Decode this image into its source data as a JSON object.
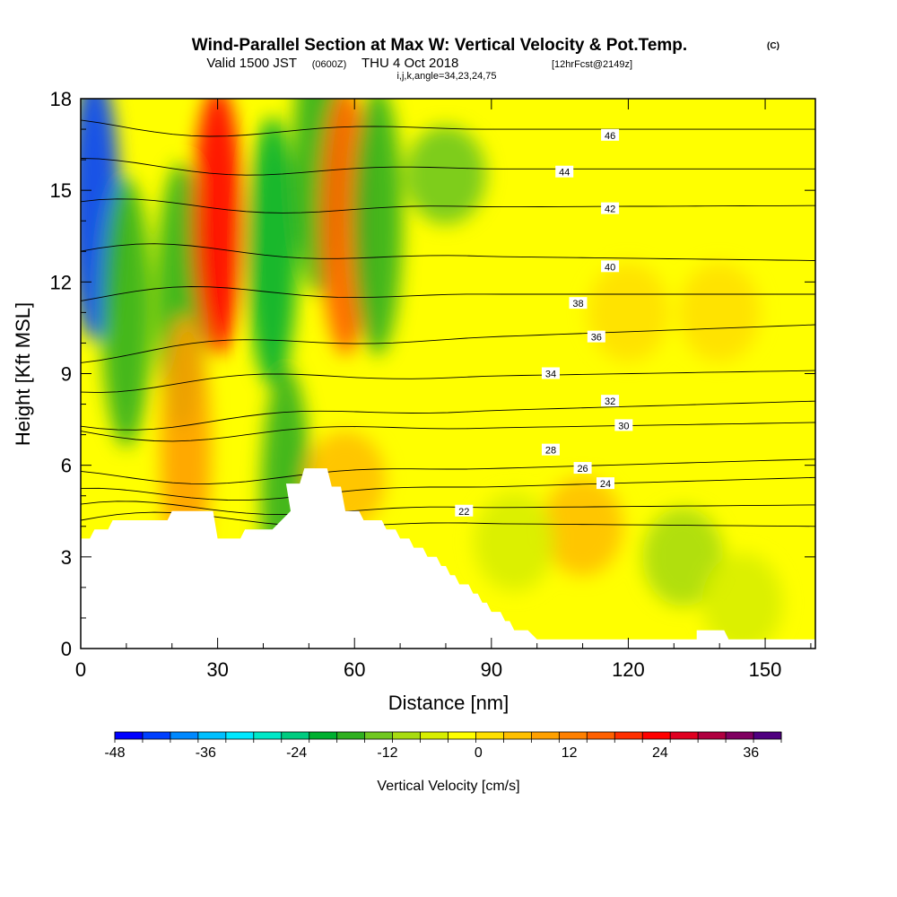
{
  "header": {
    "title": "Wind-Parallel Section at Max W: Vertical Velocity & Pot.Temp.",
    "copyright": "(C)",
    "valid_prefix": "Valid 1500 JST",
    "valid_utc": "(0600Z)",
    "valid_date": "THU 4 Oct 2018",
    "forecast": "[12hrFcst@2149z]",
    "indices": "i,j,k,angle=34,23,24,75"
  },
  "chart_data": {
    "type": "heatmap",
    "title": "Wind-Parallel Section at Max W: Vertical Velocity & Pot.Temp.",
    "xlabel": "Distance [nm]",
    "ylabel": "Height [Kft MSL]",
    "xlim": [
      0,
      161
    ],
    "ylim": [
      0,
      18
    ],
    "x_ticks": [
      "0",
      "30",
      "60",
      "90",
      "120",
      "150"
    ],
    "y_ticks": [
      "0",
      "3",
      "6",
      "9",
      "12",
      "15",
      "18"
    ],
    "x_tick_values": [
      0,
      30,
      60,
      90,
      120,
      150
    ],
    "y_tick_values": [
      0,
      3,
      6,
      9,
      12,
      15,
      18
    ],
    "colorbar": {
      "label": "Vertical Velocity [cm/s]",
      "min": -48,
      "max": 40,
      "step": 4,
      "tick_labels": [
        "-48",
        "-36",
        "-24",
        "-12",
        "0",
        "12",
        "24",
        "36"
      ],
      "tick_values": [
        -48,
        -36,
        -24,
        -12,
        0,
        12,
        24,
        36
      ],
      "colors": [
        "#0000ff",
        "#0040ff",
        "#0088ff",
        "#00c0ff",
        "#00e8ff",
        "#00e8c8",
        "#00cc80",
        "#00b030",
        "#30b020",
        "#70c820",
        "#a8dc10",
        "#d8ee00",
        "#ffff00",
        "#ffe000",
        "#ffc000",
        "#ffa000",
        "#ff8000",
        "#ff6000",
        "#ff3000",
        "#ff0000",
        "#e00020",
        "#b00040",
        "#800060",
        "#500080"
      ]
    },
    "velocity_features": [
      {
        "x": 3,
        "y": 14.5,
        "value": -44
      },
      {
        "x": 10,
        "y": 11,
        "value": -14
      },
      {
        "x": 22,
        "y": 11.5,
        "value": -16
      },
      {
        "x": 30,
        "y": 14,
        "value": 28
      },
      {
        "x": 42,
        "y": 13,
        "value": -20
      },
      {
        "x": 52,
        "y": 16,
        "value": -14
      },
      {
        "x": 58,
        "y": 14,
        "value": 20
      },
      {
        "x": 65,
        "y": 14,
        "value": -16
      },
      {
        "x": 80,
        "y": 15.5,
        "value": -10
      },
      {
        "x": 23,
        "y": 6.5,
        "value": 14
      },
      {
        "x": 45,
        "y": 4.8,
        "value": -14
      },
      {
        "x": 58,
        "y": 5.5,
        "value": 10
      },
      {
        "x": 110,
        "y": 4,
        "value": 8
      },
      {
        "x": 95,
        "y": 3.5,
        "value": -4
      },
      {
        "x": 132,
        "y": 3,
        "value": -6
      },
      {
        "x": 145,
        "y": 1.5,
        "value": -4
      },
      {
        "x": 140,
        "y": 11,
        "value": 6
      },
      {
        "x": 120,
        "y": 11,
        "value": 5
      }
    ],
    "theta_contours": [
      {
        "value": 22,
        "label": "22",
        "y_left": 4.2,
        "y_right": 4.0,
        "label_x": 84,
        "label_y": 4.5
      },
      {
        "value": 24,
        "label": "24",
        "y_left": 4.5,
        "y_right": 4.7,
        "label_x": 115,
        "label_y": 5.4
      },
      {
        "value": 26,
        "label": "26",
        "y_left": 4.9,
        "y_right": 5.6,
        "label_x": 110,
        "label_y": 5.9
      },
      {
        "value": 28,
        "label": "28",
        "y_left": 5.5,
        "y_right": 6.2,
        "label_x": 103,
        "label_y": 6.5
      },
      {
        "value": 30,
        "label": "30",
        "y_left": 7.0,
        "y_right": 7.4,
        "label_x": 119,
        "label_y": 7.3
      },
      {
        "value": 32,
        "label": "32",
        "y_left": 7.4,
        "y_right": 8.1,
        "label_x": 116,
        "label_y": 8.1
      },
      {
        "value": 34,
        "label": "34",
        "y_left": 8.7,
        "y_right": 9.1,
        "label_x": 103,
        "label_y": 9.0
      },
      {
        "value": 36,
        "label": "36",
        "y_left": 9.7,
        "y_right": 10.6,
        "label_x": 113,
        "label_y": 10.2
      },
      {
        "value": 38,
        "label": "38",
        "y_left": 11.6,
        "y_right": 11.6,
        "label_x": 109,
        "label_y": 11.3
      },
      {
        "value": 40,
        "label": "40",
        "y_left": 13.0,
        "y_right": 12.7,
        "label_x": 116,
        "label_y": 12.5
      },
      {
        "value": 42,
        "label": "42",
        "y_left": 14.4,
        "y_right": 14.5,
        "label_x": 116,
        "label_y": 14.4
      },
      {
        "value": 44,
        "label": "44",
        "y_left": 15.7,
        "y_right": 15.7,
        "label_x": 106,
        "label_y": 15.6
      },
      {
        "value": 46,
        "label": "46",
        "y_left": 17.0,
        "y_right": 17.0,
        "label_x": 116,
        "label_y": 16.8
      }
    ],
    "terrain": [
      [
        0,
        3.6
      ],
      [
        2,
        3.6
      ],
      [
        3,
        3.9
      ],
      [
        6,
        3.9
      ],
      [
        7,
        4.2
      ],
      [
        19,
        4.2
      ],
      [
        20,
        4.5
      ],
      [
        29,
        4.5
      ],
      [
        30,
        3.6
      ],
      [
        35,
        3.6
      ],
      [
        36,
        3.9
      ],
      [
        42,
        3.9
      ],
      [
        46,
        4.5
      ],
      [
        45,
        5.4
      ],
      [
        48,
        5.4
      ],
      [
        49,
        5.9
      ],
      [
        54,
        5.9
      ],
      [
        55,
        5.3
      ],
      [
        57,
        5.3
      ],
      [
        58,
        4.5
      ],
      [
        61,
        4.5
      ],
      [
        62,
        4.2
      ],
      [
        66,
        4.2
      ],
      [
        67,
        3.9
      ],
      [
        69,
        3.9
      ],
      [
        70,
        3.6
      ],
      [
        72,
        3.6
      ],
      [
        73,
        3.3
      ],
      [
        75,
        3.3
      ],
      [
        76,
        3.0
      ],
      [
        78,
        3.0
      ],
      [
        79,
        2.7
      ],
      [
        80,
        2.7
      ],
      [
        81,
        2.4
      ],
      [
        82,
        2.4
      ],
      [
        83,
        2.1
      ],
      [
        85,
        2.1
      ],
      [
        86,
        1.8
      ],
      [
        87,
        1.8
      ],
      [
        88,
        1.5
      ],
      [
        89,
        1.5
      ],
      [
        90,
        1.2
      ],
      [
        92,
        1.2
      ],
      [
        93,
        0.9
      ],
      [
        94,
        0.9
      ],
      [
        95,
        0.6
      ],
      [
        98,
        0.6
      ],
      [
        100,
        0.3
      ],
      [
        135,
        0.3
      ],
      [
        135,
        0.6
      ],
      [
        141,
        0.6
      ],
      [
        142,
        0.3
      ],
      [
        161,
        0.3
      ]
    ]
  }
}
